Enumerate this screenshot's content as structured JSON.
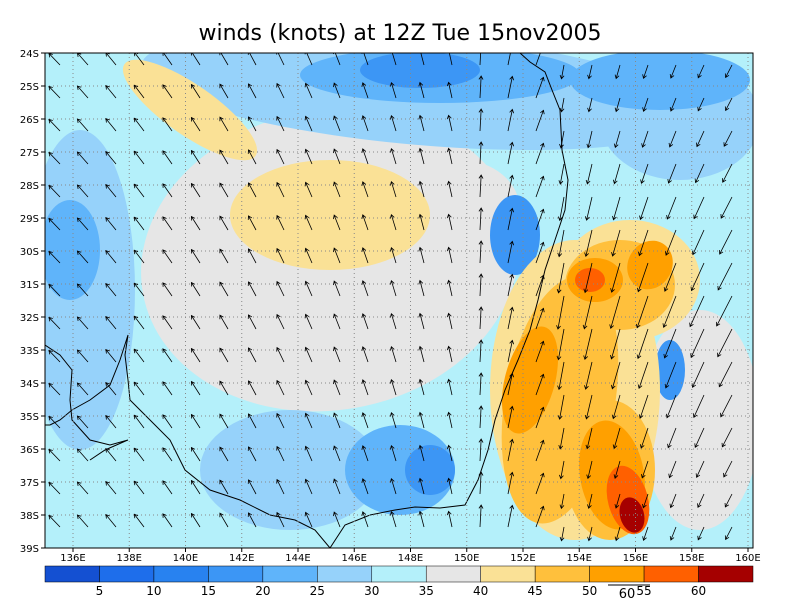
{
  "title": "winds (knots) at 12Z Tue 15nov2005",
  "lon_labels": [
    "136E",
    "138E",
    "140E",
    "142E",
    "144E",
    "146E",
    "148E",
    "150E",
    "152E",
    "154E",
    "156E",
    "158E",
    "160E"
  ],
  "lat_labels": [
    "24S",
    "25S",
    "26S",
    "27S",
    "28S",
    "29S",
    "30S",
    "31S",
    "32S",
    "33S",
    "34S",
    "35S",
    "36S",
    "37S",
    "38S",
    "39S"
  ],
  "colorbar": {
    "colors": [
      "#1450d2",
      "#1e6eeb",
      "#2882f0",
      "#3c96f5",
      "#5fb4fa",
      "#96d2fa",
      "#b4f0fa",
      "#e6e6e6",
      "#fae196",
      "#ffc03c",
      "#ffa000",
      "#ff6000",
      "#a50000"
    ],
    "labels": [
      "5",
      "10",
      "15",
      "20",
      "25",
      "30",
      "35",
      "40",
      "45",
      "50",
      "55",
      "60"
    ]
  },
  "reference_vector": "60"
}
